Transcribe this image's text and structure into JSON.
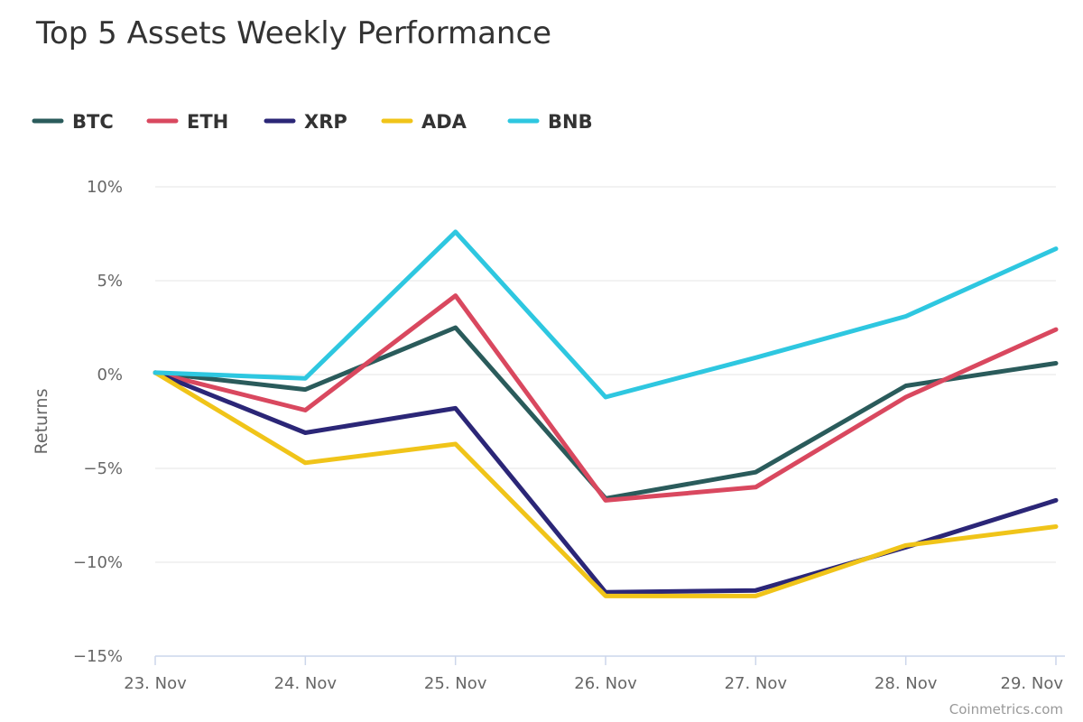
{
  "chart_data": {
    "type": "line",
    "title": "Top 5 Assets Weekly Performance",
    "xlabel": "",
    "ylabel": "Returns",
    "categories": [
      "23. Nov",
      "24. Nov",
      "25. Nov",
      "26. Nov",
      "27. Nov",
      "28. Nov",
      "29. Nov"
    ],
    "ylim": [
      -15,
      10
    ],
    "yticks": [
      10,
      5,
      0,
      -5,
      -10,
      -15
    ],
    "ytick_labels": [
      "10%",
      "5%",
      "0%",
      "−5%",
      "−10%",
      "−15%"
    ],
    "grid": true,
    "legend_position": "top-left",
    "series": [
      {
        "name": "BTC",
        "color": "#2a5b5b",
        "values": [
          0.1,
          -0.8,
          2.5,
          -6.6,
          -5.2,
          -0.6,
          0.6
        ]
      },
      {
        "name": "ETH",
        "color": "#d9485f",
        "values": [
          0.1,
          -1.9,
          4.2,
          -6.7,
          -6.0,
          -1.2,
          2.4
        ]
      },
      {
        "name": "XRP",
        "color": "#2b2677",
        "values": [
          0.1,
          -3.1,
          -1.8,
          -11.6,
          -11.5,
          -9.2,
          -6.7
        ]
      },
      {
        "name": "ADA",
        "color": "#f0c419",
        "values": [
          0.1,
          -4.7,
          -3.7,
          -11.8,
          -11.8,
          -9.1,
          -8.1
        ]
      },
      {
        "name": "BNB",
        "color": "#2ec7e0",
        "values": [
          0.1,
          -0.2,
          7.6,
          -1.2,
          0.9,
          3.1,
          6.7
        ]
      }
    ],
    "credit": "Coinmetrics.com"
  }
}
